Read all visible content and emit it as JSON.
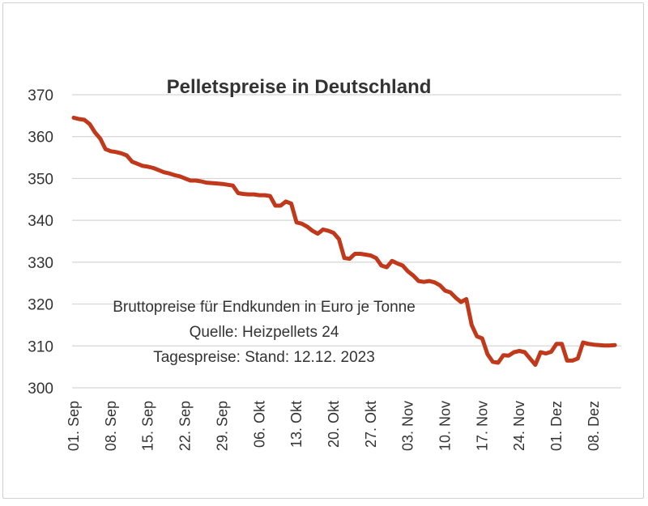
{
  "chart_data": {
    "type": "line",
    "title": "Pelletspreise in Deutschland",
    "annotations": [
      "Bruttopreise für Endkunden in Euro je Tonne",
      "Quelle: Heizpellets 24",
      "Tagespreise: Stand: 12.12. 2023"
    ],
    "ylim": [
      300,
      370
    ],
    "yticks": [
      300,
      310,
      320,
      330,
      340,
      350,
      360,
      370
    ],
    "xticks": [
      "01. Sep",
      "08. Sep",
      "15. Sep",
      "22. Sep",
      "29. Sep",
      "06. Okt",
      "13. Okt",
      "20. Okt",
      "27. Okt",
      "03. Nov",
      "10. Nov",
      "17. Nov",
      "24. Nov",
      "01. Dez",
      "08. Dez"
    ],
    "grid": true,
    "line_color": "#c0391b",
    "series": [
      {
        "x": [
          "01.09.",
          "02.09.",
          "03.09.",
          "04.09.",
          "05.09.",
          "06.09.",
          "07.09.",
          "08.09.",
          "09.09.",
          "10.09.",
          "11.09.",
          "12.09.",
          "13.09.",
          "14.09.",
          "15.09.",
          "16.09.",
          "17.09.",
          "18.09.",
          "19.09.",
          "20.09.",
          "21.09.",
          "22.09.",
          "23.09.",
          "24.09.",
          "25.09.",
          "26.09.",
          "27.09.",
          "28.09.",
          "29.09.",
          "30.09.",
          "01.10.",
          "02.10.",
          "03.10.",
          "04.10.",
          "05.10.",
          "06.10.",
          "07.10.",
          "08.10.",
          "09.10.",
          "10.10.",
          "11.10.",
          "12.10.",
          "13.10.",
          "14.10.",
          "15.10.",
          "16.10.",
          "17.10.",
          "18.10.",
          "19.10.",
          "20.10.",
          "21.10.",
          "22.10.",
          "23.10.",
          "24.10.",
          "25.10.",
          "26.10.",
          "27.10.",
          "28.10.",
          "29.10.",
          "30.10.",
          "31.10.",
          "01.11.",
          "02.11.",
          "03.11.",
          "04.11.",
          "05.11.",
          "06.11.",
          "07.11.",
          "08.11.",
          "09.11.",
          "10.11.",
          "11.11.",
          "12.11.",
          "13.11.",
          "14.11.",
          "15.11.",
          "16.11.",
          "17.11.",
          "18.11.",
          "19.11.",
          "20.11.",
          "21.11.",
          "22.11.",
          "23.11.",
          "24.11.",
          "25.11.",
          "26.11.",
          "27.11.",
          "28.11.",
          "29.11.",
          "30.11.",
          "01.12.",
          "02.12.",
          "03.12.",
          "04.12.",
          "05.12.",
          "06.12.",
          "07.12.",
          "08.12.",
          "09.12.",
          "10.12.",
          "11.12.",
          "12.12."
        ],
        "values": [
          364.5,
          364.2,
          364,
          363,
          361,
          359.5,
          357,
          356.5,
          356.3,
          356,
          355.5,
          354,
          353.5,
          353,
          352.8,
          352.5,
          352,
          351.5,
          351.2,
          350.8,
          350.5,
          350,
          349.5,
          349.5,
          349.3,
          349,
          348.9,
          348.8,
          348.7,
          348.5,
          348.3,
          346.5,
          346.3,
          346.2,
          346.2,
          346,
          346,
          345.8,
          343.5,
          343.5,
          344.5,
          344,
          339.5,
          339.2,
          338.5,
          337.5,
          336.8,
          337.8,
          337.5,
          337,
          335.5,
          331,
          330.8,
          332,
          332,
          331.8,
          331.6,
          331,
          329.2,
          328.8,
          330.3,
          329.7,
          329.2,
          327.8,
          326.8,
          325.5,
          325.3,
          325.5,
          325.2,
          324.5,
          323.2,
          322.8,
          321.5,
          320.5,
          321.2,
          315,
          312.3,
          311.8,
          308,
          306.2,
          306,
          307.8,
          307.7,
          308.5,
          308.8,
          308.5,
          307,
          305.5,
          308.5,
          308.2,
          308.6,
          310.5,
          310.5,
          306.5,
          306.5,
          307,
          310.8,
          310.5,
          310.3,
          310.2,
          310.1,
          310.1,
          310.2
        ]
      }
    ]
  }
}
